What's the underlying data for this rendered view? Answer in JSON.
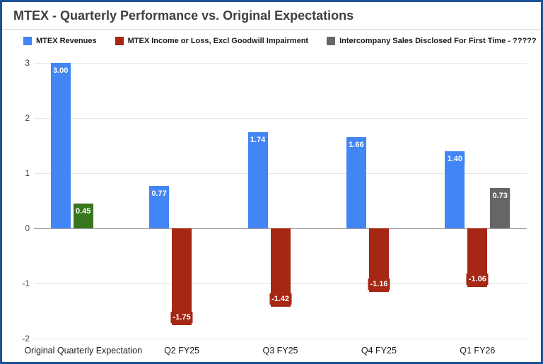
{
  "window": {
    "background": "#ffffff",
    "border_color": "#1d5296"
  },
  "chart_data": {
    "type": "bar",
    "title": "MTEX - Quarterly Performance vs. Original Expectations",
    "categories": [
      "Original Quarterly Expectation",
      "Q2 FY25",
      "Q3 FY25",
      "Q4 FY25",
      "Q1 FY26"
    ],
    "series": [
      {
        "name": "MTEX Revenues",
        "color": "#4285f4",
        "values": [
          3.0,
          0.77,
          1.74,
          1.66,
          1.4
        ],
        "labels": [
          "3.00",
          "0.77",
          "1.74",
          "1.66",
          "1.40"
        ]
      },
      {
        "name": "MTEX Income or Loss, Excl Goodwill Impairment",
        "color": "#a52714",
        "point_colors": {
          "0": "#38761d"
        },
        "values": [
          0.45,
          -1.75,
          -1.42,
          -1.16,
          -1.06
        ],
        "labels": [
          "0.45",
          "-1.75",
          "-1.42",
          "-1.16",
          "-1.06"
        ]
      },
      {
        "name": "Intercompany Sales Disclosed For First Time - ?????",
        "color": "#666666",
        "values": [
          null,
          null,
          null,
          null,
          0.73
        ],
        "labels": [
          null,
          null,
          null,
          null,
          "0.73"
        ]
      }
    ],
    "ylim": [
      -2,
      3
    ],
    "yticks": [
      3,
      2,
      1,
      0,
      -1,
      -2
    ],
    "grid": true,
    "legend_position": "top",
    "annotations": "value labels shown on bars"
  }
}
